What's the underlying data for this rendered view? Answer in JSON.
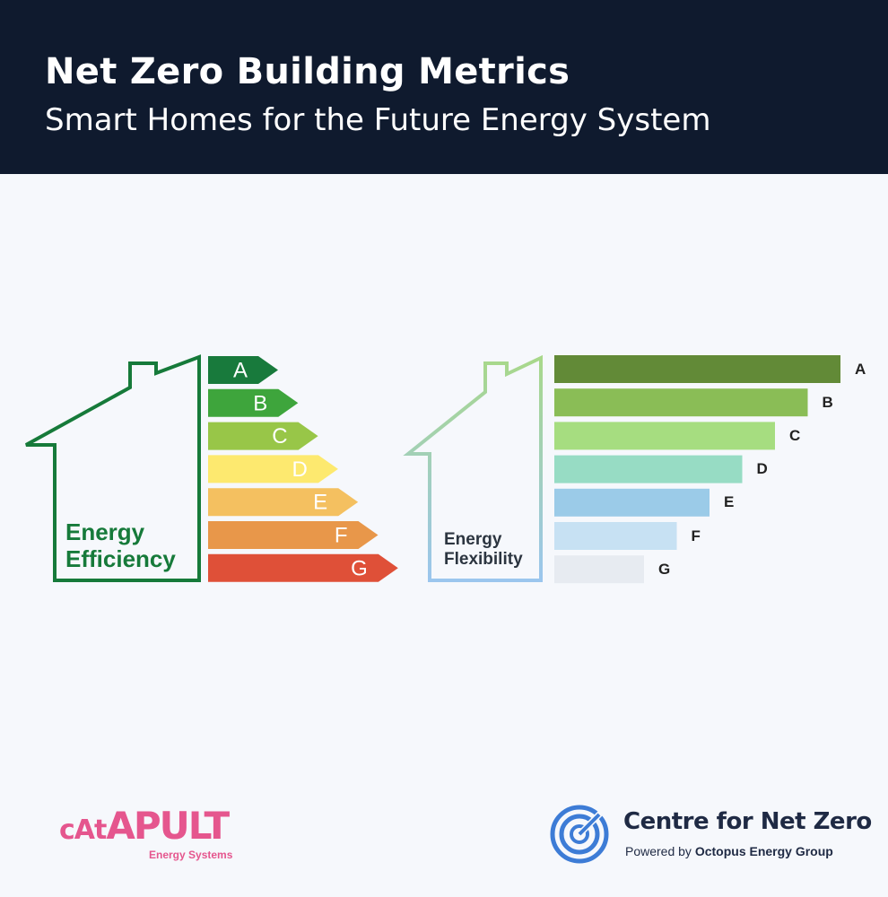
{
  "header": {
    "title": "Net Zero Building Metrics",
    "subtitle": "Smart Homes for the Future Energy System"
  },
  "efficiency": {
    "label_line1": "Energy",
    "label_line2": "Efficiency",
    "bands": [
      {
        "letter": "A",
        "color": "#187a3c"
      },
      {
        "letter": "B",
        "color": "#3ea53c"
      },
      {
        "letter": "C",
        "color": "#98c648"
      },
      {
        "letter": "D",
        "color": "#fde96f"
      },
      {
        "letter": "E",
        "color": "#f4c060"
      },
      {
        "letter": "F",
        "color": "#e8974a"
      },
      {
        "letter": "G",
        "color": "#df5038"
      }
    ],
    "house_color": "#167a3a"
  },
  "flexibility": {
    "label_line1": "Energy",
    "label_line2": "Flexibility",
    "bands": [
      {
        "letter": "A",
        "color": "#628a37"
      },
      {
        "letter": "B",
        "color": "#8abd56"
      },
      {
        "letter": "C",
        "color": "#a6dd80"
      },
      {
        "letter": "D",
        "color": "#97dcc4"
      },
      {
        "letter": "E",
        "color": "#9bcbe8"
      },
      {
        "letter": "F",
        "color": "#c7e1f3"
      },
      {
        "letter": "G",
        "color": "#e7ebf1"
      }
    ],
    "house_gradient": [
      "#a8d88a",
      "#9bc6ee"
    ]
  },
  "logos": {
    "catapult": {
      "small1": "cAt",
      "big1": "A",
      "big2": "PULT",
      "subtitle": "Energy Systems",
      "color": "#e5568e"
    },
    "cnz": {
      "icon": "target-icon",
      "title": "Centre for Net Zero",
      "powered_prefix": "Powered by ",
      "powered_brand": "Octopus Energy Group",
      "color": "#3d7cd6"
    }
  }
}
